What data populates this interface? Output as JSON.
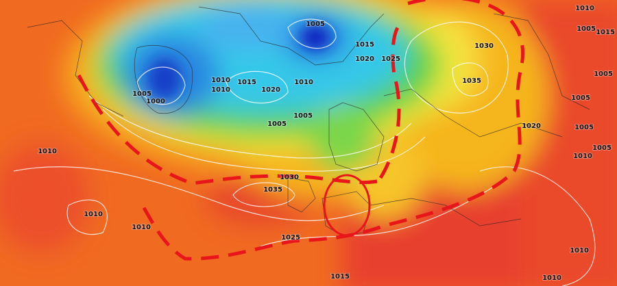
{
  "isobar_labels": [
    "1010",
    "1005",
    "1015",
    "1005",
    "1015",
    "1030",
    "1020",
    "1025",
    "1005",
    "1005",
    "1010",
    "1010",
    "1015",
    "1020",
    "1010",
    "1035",
    "1000",
    "1005",
    "1005",
    "1005",
    "1020",
    "1005",
    "1010",
    "1005",
    "1010",
    "1030",
    "1035",
    "1010",
    "1010",
    "1025",
    "1010",
    "1015",
    "1010"
  ]
}
